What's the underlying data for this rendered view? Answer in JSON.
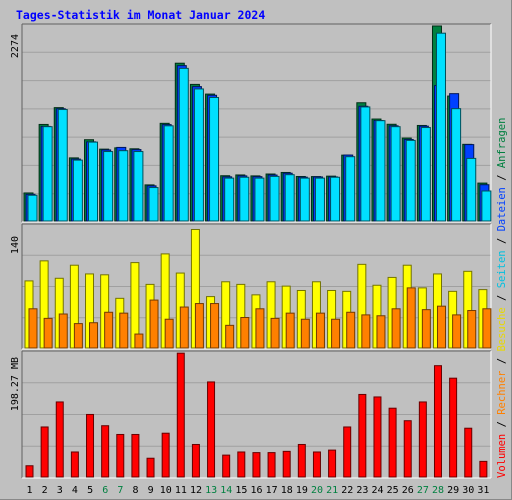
{
  "title": "Tages-Statistik im Monat Januar 2024",
  "chart_data": [
    {
      "type": "bar",
      "panel": "hits",
      "y_tick_label": "2274",
      "ylim": [
        0,
        2274
      ],
      "grid": true,
      "categories": [
        "1",
        "2",
        "3",
        "4",
        "5",
        "6",
        "7",
        "8",
        "9",
        "10",
        "11",
        "12",
        "13",
        "14",
        "15",
        "16",
        "17",
        "18",
        "19",
        "20",
        "21",
        "22",
        "23",
        "24",
        "25",
        "26",
        "27",
        "28",
        "29",
        "30",
        "31"
      ],
      "weekend_days": [
        "6",
        "7",
        "13",
        "14",
        "20",
        "21",
        "27",
        "28"
      ],
      "series": [
        {
          "name": "Anfragen",
          "color": "#008040",
          "values": [
            327,
            1126,
            1322,
            736,
            948,
            838,
            853,
            842,
            421,
            1139,
            1840,
            1593,
            1480,
            528,
            537,
            526,
            548,
            566,
            519,
            518,
            523,
            768,
            1379,
            1189,
            1128,
            967,
            1114,
            2274,
            1457,
            894,
            442
          ]
        },
        {
          "name": "Dateien",
          "color": "#0040ff",
          "values": [
            311,
            1103,
            1309,
            722,
            923,
            829,
            858,
            833,
            410,
            1124,
            1812,
            1567,
            1466,
            515,
            526,
            517,
            536,
            557,
            511,
            514,
            514,
            769,
            1338,
            1172,
            1110,
            951,
            1106,
            1579,
            1485,
            891,
            423
          ]
        },
        {
          "name": "Seiten",
          "color": "#00e0ff",
          "values": [
            300,
            1100,
            1300,
            710,
            920,
            810,
            820,
            810,
            390,
            1110,
            1780,
            1540,
            1440,
            500,
            510,
            500,
            520,
            540,
            500,
            500,
            510,
            750,
            1330,
            1170,
            1100,
            940,
            1090,
            2190,
            1310,
            730,
            350
          ]
        }
      ]
    },
    {
      "type": "bar",
      "panel": "visits",
      "y_tick_label": "140",
      "ylim": [
        0,
        140
      ],
      "grid": true,
      "categories": [
        "1",
        "2",
        "3",
        "4",
        "5",
        "6",
        "7",
        "8",
        "9",
        "10",
        "11",
        "12",
        "13",
        "14",
        "15",
        "16",
        "17",
        "18",
        "19",
        "20",
        "21",
        "22",
        "23",
        "24",
        "25",
        "26",
        "27",
        "28",
        "29",
        "30",
        "31"
      ],
      "series": [
        {
          "name": "Besuche",
          "color": "#ffff00",
          "values": [
            77,
            100,
            80,
            95,
            85,
            84,
            57,
            98,
            73,
            108,
            86,
            136,
            59,
            76,
            73,
            61,
            76,
            71,
            66,
            76,
            66,
            65,
            96,
            72,
            81,
            95,
            69,
            85,
            65,
            88,
            67
          ]
        },
        {
          "name": "Rechner",
          "color": "#ff8000",
          "values": [
            45,
            34,
            39,
            28,
            29,
            41,
            40,
            16,
            55,
            33,
            47,
            51,
            51,
            26,
            35,
            45,
            34,
            40,
            33,
            40,
            33,
            41,
            38,
            37,
            45,
            69,
            44,
            48,
            38,
            43,
            45
          ]
        }
      ]
    },
    {
      "type": "bar",
      "panel": "volume",
      "y_tick_label": "198.27 MB",
      "ylim": [
        0,
        198.27
      ],
      "grid": true,
      "categories": [
        "1",
        "2",
        "3",
        "4",
        "5",
        "6",
        "7",
        "8",
        "9",
        "10",
        "11",
        "12",
        "13",
        "14",
        "15",
        "16",
        "17",
        "18",
        "19",
        "20",
        "21",
        "22",
        "23",
        "24",
        "25",
        "26",
        "27",
        "28",
        "29",
        "30",
        "31"
      ],
      "series": [
        {
          "name": "Volumen",
          "color": "#ff0000",
          "values": [
            18,
            80,
            120,
            40,
            100,
            82,
            68,
            68,
            30,
            70,
            198,
            52,
            152,
            35,
            40,
            39,
            39,
            41,
            52,
            40,
            43,
            80,
            132,
            128,
            110,
            90,
            120,
            178,
            158,
            78,
            25
          ]
        }
      ]
    }
  ],
  "legend": [
    {
      "label": "Volumen",
      "color": "#ff0000"
    },
    {
      "label": "Rechner",
      "color": "#ff8000"
    },
    {
      "label": "Besuche",
      "color": "#e8d800"
    },
    {
      "label": "Seiten",
      "color": "#00c0e0"
    },
    {
      "label": "Dateien",
      "color": "#0040ff"
    },
    {
      "label": "Anfragen",
      "color": "#008040"
    }
  ],
  "colors": {
    "background": "#c0c0c0",
    "title": "#0000ff",
    "weekend_label": "#008040",
    "weekday_label": "#000000",
    "legend_separator": "#000000"
  }
}
